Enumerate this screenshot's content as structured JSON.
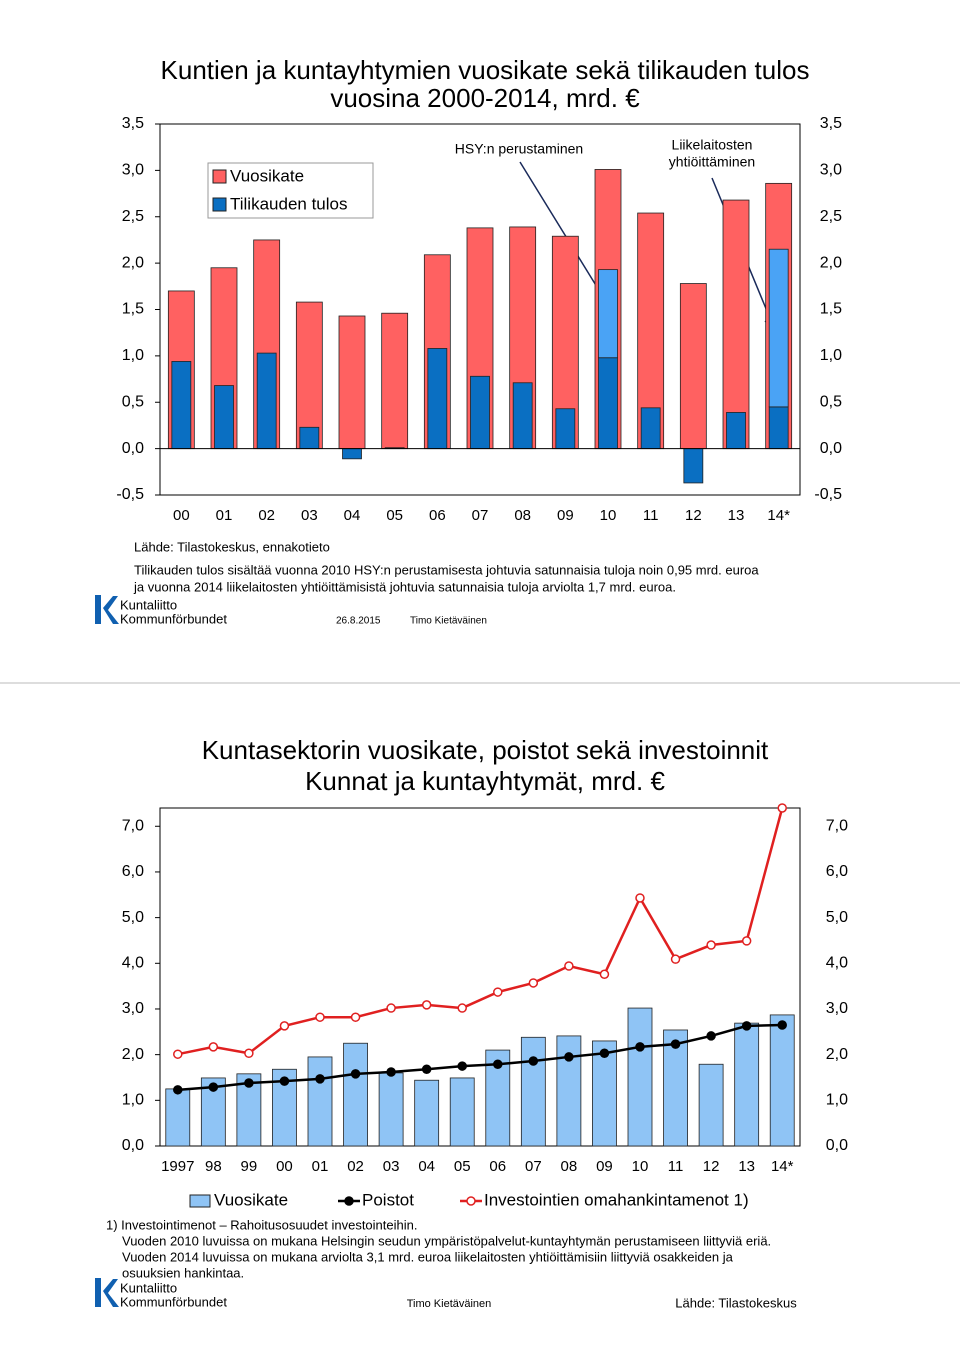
{
  "chart_data": [
    {
      "type": "bar",
      "title": [
        "Kuntien ja kuntayhtymien vuosikate sekä tilikauden tulos",
        "vuosina 2000-2014, mrd. €"
      ],
      "categories": [
        "00",
        "01",
        "02",
        "03",
        "04",
        "05",
        "06",
        "07",
        "08",
        "09",
        "10",
        "11",
        "12",
        "13",
        "14*"
      ],
      "series": [
        {
          "name": "Vuosikate",
          "color": "#ff6161",
          "values": [
            1.7,
            1.95,
            2.25,
            1.58,
            1.43,
            1.46,
            2.09,
            2.38,
            2.39,
            2.29,
            3.01,
            2.54,
            1.78,
            2.68,
            2.86
          ]
        },
        {
          "name": "Tilikauden tulos",
          "color": "#0a6fc2",
          "values": [
            0.94,
            0.68,
            1.03,
            0.23,
            -0.11,
            0.01,
            1.08,
            0.78,
            0.71,
            0.43,
            0.98,
            0.44,
            -0.37,
            0.39,
            0.45
          ]
        },
        {
          "color": "#4aa3f5",
          "values": [
            null,
            null,
            null,
            null,
            null,
            null,
            null,
            null,
            null,
            null,
            0.95,
            null,
            null,
            null,
            1.7
          ]
        }
      ],
      "ylim": [
        -0.5,
        3.5
      ],
      "yticks": [
        {
          "value": -0.5,
          "label": "-0,5"
        },
        {
          "value": 0,
          "label": "0,0"
        },
        {
          "value": 0.5,
          "label": "0,5"
        },
        {
          "value": 1,
          "label": "1,0"
        },
        {
          "value": 1.5,
          "label": "1,5"
        },
        {
          "value": 2,
          "label": "2,0"
        },
        {
          "value": 2.5,
          "label": "2,5"
        },
        {
          "value": 3,
          "label": "3,0"
        },
        {
          "value": 3.5,
          "label": "3,5"
        }
      ],
      "legend": "upper left",
      "annotations": [
        "HSY:n perustaminen",
        "Liikelaitosten",
        "yhtiöittäminen"
      ],
      "source": "Lähde: Tilastokeskus, ennakotieto",
      "notes": [
        "Tilikauden tulos sisältää vuonna 2010 HSY:n perustamisesta johtuvia satunnaisia tuloja noin 0,95 mrd. euroa",
        "ja vuonna 2014 liikelaitosten yhtiöittämisistä johtuvia satunnaisia tuloja arviolta 1,7 mrd. euroa."
      ],
      "logo": [
        "Kuntaliitto",
        "Kommunförbundet"
      ],
      "date": "26.8.2015",
      "author": "Timo Kietäväinen"
    },
    {
      "type": "combo",
      "title": [
        "Kuntasektorin vuosikate, poistot sekä investoinnit",
        "Kunnat ja kuntayhtymät, mrd. €"
      ],
      "categories": [
        "1997",
        "98",
        "99",
        "00",
        "01",
        "02",
        "03",
        "04",
        "05",
        "06",
        "07",
        "08",
        "09",
        "10",
        "11",
        "12",
        "13",
        "14*"
      ],
      "series": [
        {
          "name": "Vuosikate",
          "type": "bar",
          "color": "#8fc4f5",
          "values": [
            1.25,
            1.49,
            1.58,
            1.68,
            1.95,
            2.25,
            1.6,
            1.44,
            1.49,
            2.1,
            2.38,
            2.41,
            2.3,
            3.02,
            2.54,
            1.79,
            2.69,
            2.87
          ]
        },
        {
          "name": "Poistot",
          "type": "line",
          "color": "#000000",
          "values": [
            1.23,
            1.29,
            1.38,
            1.42,
            1.47,
            1.58,
            1.62,
            1.68,
            1.75,
            1.79,
            1.86,
            1.95,
            2.03,
            2.17,
            2.23,
            2.41,
            2.63,
            2.65
          ]
        },
        {
          "name": "Investointien omahankintamenot 1)",
          "type": "line",
          "color": "#e02020",
          "values": [
            2.01,
            2.17,
            2.03,
            2.63,
            2.82,
            2.82,
            3.02,
            3.09,
            3.02,
            3.37,
            3.57,
            3.94,
            3.76,
            5.43,
            4.09,
            4.4,
            4.49,
            7.4
          ]
        }
      ],
      "ylim": [
        0,
        7.4
      ],
      "yticks": [
        {
          "value": 0,
          "label": "0,0"
        },
        {
          "value": 1,
          "label": "1,0"
        },
        {
          "value": 2,
          "label": "2,0"
        },
        {
          "value": 3,
          "label": "3,0"
        },
        {
          "value": 4,
          "label": "4,0"
        },
        {
          "value": 5,
          "label": "5,0"
        },
        {
          "value": 6,
          "label": "6,0"
        },
        {
          "value": 7,
          "label": "7,0"
        }
      ],
      "legend": "bottom",
      "notes": [
        "1) Investointimenot – Rahoitusosuudet investointeihin.",
        "Vuoden 2010 luvuissa on mukana Helsingin seudun ympäristöpalvelut-kuntayhtymän perustamiseen liittyviä eriä.",
        "Vuoden 2014 luvuissa on mukana arviolta 3,1 mrd. euroa liikelaitosten yhtiöittämisiin liittyviä osakkeiden ja",
        "osuuksien hankintaa."
      ],
      "logo": [
        "Kuntaliitto",
        "Kommunförbundet"
      ],
      "author": "Timo Kietäväinen",
      "source": "Lähde: Tilastokeskus"
    }
  ]
}
